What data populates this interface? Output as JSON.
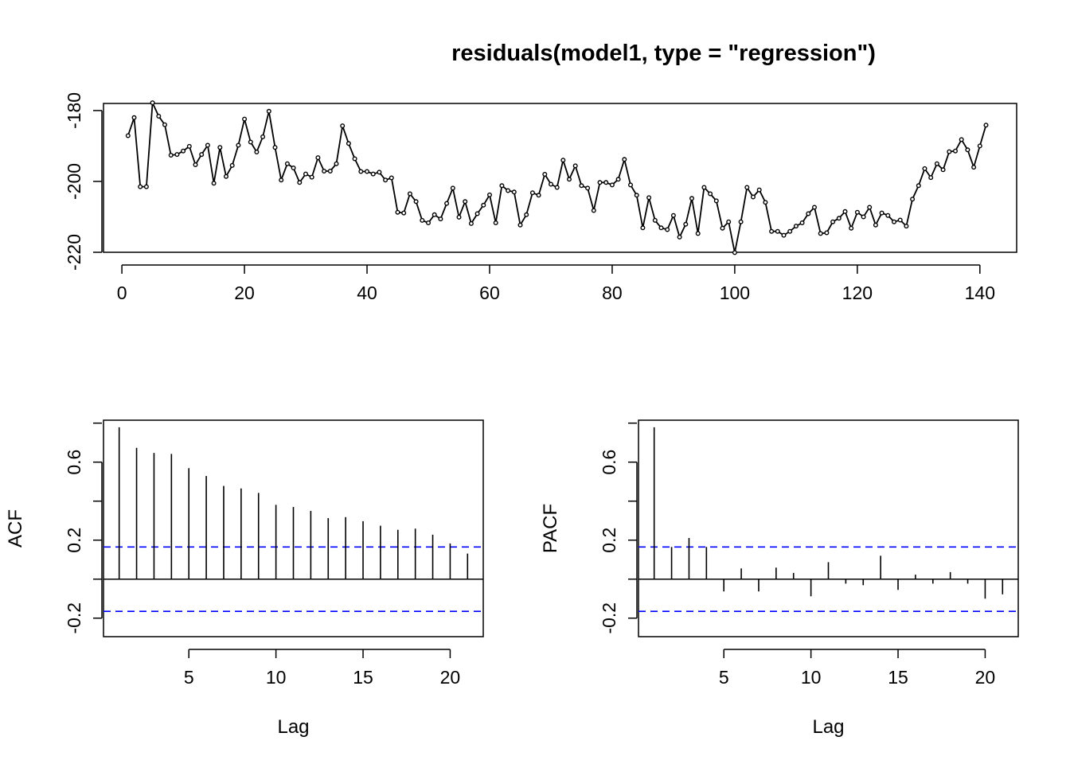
{
  "chart_data": [
    {
      "type": "line",
      "title": "residuals(model1, type = \"regression\")",
      "xlabel": "",
      "ylabel": "",
      "xlim": [
        -3,
        146
      ],
      "ylim": [
        -220,
        -178
      ],
      "xticks": [
        0,
        20,
        40,
        60,
        80,
        100,
        120,
        140
      ],
      "yticks": [
        -220,
        -200,
        -180
      ],
      "xtick_labels": [
        "0",
        "20",
        "40",
        "60",
        "80",
        "100",
        "120",
        "140"
      ],
      "ytick_labels": [
        "-220",
        "-200",
        "-180"
      ],
      "markers": "open circles",
      "grid": false,
      "x_start": 1,
      "values": [
        -187.1,
        -182,
        -201.5,
        -201.5,
        -177.8,
        -181.6,
        -184,
        -192.6,
        -192.4,
        -191.4,
        -190.1,
        -195.3,
        -192.4,
        -189.8,
        -200.5,
        -190.4,
        -198.6,
        -195.5,
        -189.8,
        -182.4,
        -188.9,
        -191.7,
        -187.4,
        -180.2,
        -190.4,
        -199.6,
        -195,
        -196.2,
        -200.3,
        -197.9,
        -198.8,
        -193.3,
        -197.1,
        -197.1,
        -195,
        -184.3,
        -189.3,
        -193.6,
        -197.2,
        -197.2,
        -197.9,
        -197.4,
        -199.6,
        -199,
        -208.7,
        -208.9,
        -203.5,
        -205.7,
        -211,
        -211.7,
        -209.4,
        -210.6,
        -206.2,
        -201.9,
        -210.1,
        -205.7,
        -211.9,
        -209.1,
        -206.7,
        -203.8,
        -211.7,
        -201.2,
        -202.6,
        -203,
        -212.3,
        -209.4,
        -203.2,
        -203.9,
        -198,
        -200.8,
        -201.7,
        -194,
        -199.4,
        -195.6,
        -201.2,
        -201.9,
        -208.2,
        -200.3,
        -200.3,
        -201,
        -199.4,
        -193.8,
        -201,
        -203.9,
        -213.1,
        -204.6,
        -211,
        -213.1,
        -213.6,
        -209.6,
        -215.7,
        -212.1,
        -204.8,
        -214.7,
        -201.7,
        -203.5,
        -205.5,
        -213.2,
        -211.4,
        -220.1,
        -211.4,
        -201.7,
        -204.4,
        -202.4,
        -205.9,
        -214.1,
        -214.1,
        -215.2,
        -214.1,
        -212.6,
        -211.7,
        -209.1,
        -207.3,
        -214.7,
        -214.5,
        -211.4,
        -210.4,
        -208.5,
        -213.2,
        -208.7,
        -210,
        -207.3,
        -212.3,
        -208.9,
        -209.6,
        -211.4,
        -210.9,
        -212.6,
        -205,
        -201.2,
        -196.4,
        -198.9,
        -195,
        -196.7,
        -191.6,
        -191.4,
        -188.2,
        -191.1,
        -196,
        -190,
        -184.1
      ]
    },
    {
      "type": "bar",
      "xlabel": "Lag",
      "ylabel": "ACF",
      "xlim": [
        0.1,
        21.9
      ],
      "ylim": [
        -0.295,
        0.815
      ],
      "xticks": [
        5,
        10,
        15,
        20
      ],
      "yticks": [
        -0.2,
        0.2,
        0.6
      ],
      "xtick_labels": [
        "5",
        "10",
        "15",
        "20"
      ],
      "ytick_labels": [
        "-0.2",
        "0.2",
        "0.6"
      ],
      "lags": [
        1,
        2,
        3,
        4,
        5,
        6,
        7,
        8,
        9,
        10,
        11,
        12,
        13,
        14,
        15,
        16,
        17,
        18,
        19,
        20,
        21
      ],
      "values": [
        0.779,
        0.673,
        0.647,
        0.642,
        0.569,
        0.529,
        0.478,
        0.465,
        0.442,
        0.381,
        0.37,
        0.35,
        0.313,
        0.318,
        0.297,
        0.274,
        0.253,
        0.259,
        0.228,
        0.183,
        0.131
      ],
      "confidence_bound": 0.165,
      "ci_color": "#0000ff",
      "grid": false
    },
    {
      "type": "bar",
      "xlabel": "Lag",
      "ylabel": "PACF",
      "xlim": [
        0.1,
        21.9
      ],
      "ylim": [
        -0.295,
        0.815
      ],
      "xticks": [
        5,
        10,
        15,
        20
      ],
      "yticks": [
        -0.2,
        0.2,
        0.6
      ],
      "xtick_labels": [
        "5",
        "10",
        "15",
        "20"
      ],
      "ytick_labels": [
        "-0.2",
        "0.2",
        "0.6"
      ],
      "lags": [
        1,
        2,
        3,
        4,
        5,
        6,
        7,
        8,
        9,
        10,
        11,
        12,
        13,
        14,
        15,
        16,
        17,
        18,
        19,
        20,
        21
      ],
      "values": [
        0.779,
        0.165,
        0.211,
        0.165,
        -0.063,
        0.055,
        -0.063,
        0.059,
        0.032,
        -0.088,
        0.087,
        -0.023,
        -0.031,
        0.12,
        -0.055,
        0.023,
        -0.023,
        0.036,
        -0.023,
        -0.1,
        -0.078
      ],
      "confidence_bound": 0.165,
      "ci_color": "#0000ff",
      "grid": false
    }
  ]
}
